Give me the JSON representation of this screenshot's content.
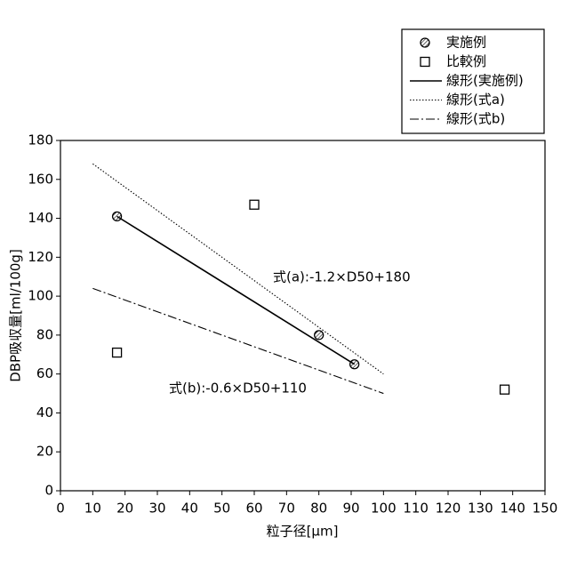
{
  "chart_data": {
    "type": "scatter",
    "x_label": "粒子径[μm]",
    "y_label": "DBP吸収量[ml/100g]",
    "xlim": [
      0,
      150
    ],
    "xticks": [
      0,
      10,
      20,
      30,
      40,
      50,
      60,
      70,
      80,
      90,
      100,
      110,
      120,
      130,
      140,
      150
    ],
    "ylim": [
      0,
      180
    ],
    "yticks": [
      0,
      20,
      40,
      60,
      80,
      100,
      120,
      140,
      160,
      180
    ],
    "series": [
      {
        "name": "実施例",
        "color": "#000000",
        "marker": "hatched-circle",
        "x": [
          17.5,
          80,
          91
        ],
        "values": [
          141,
          80,
          65
        ]
      },
      {
        "name": "比較例",
        "color": "#000000",
        "marker": "square",
        "x": [
          17.5,
          60,
          137.5
        ],
        "values": [
          71,
          147,
          52
        ]
      },
      {
        "name": "線形(実施例)",
        "color": "#000000",
        "line": "solid",
        "x": [
          17.5,
          91
        ],
        "values": [
          141,
          65
        ]
      },
      {
        "name": "線形(式a)",
        "color": "#000000",
        "line": "dotted",
        "x": [
          10,
          100
        ],
        "values": [
          168,
          60
        ]
      },
      {
        "name": "線形(式b)",
        "color": "#000000",
        "line": "dashdot",
        "x": [
          10,
          100
        ],
        "values": [
          104,
          50
        ]
      }
    ],
    "annotations": [
      {
        "text": "式(a):-1.2×D50+180"
      },
      {
        "text": "式(b):-0.6×D50+110"
      }
    ],
    "legend": "top-right"
  }
}
